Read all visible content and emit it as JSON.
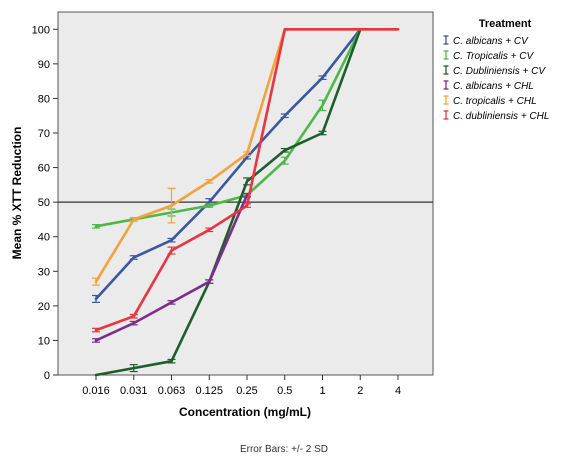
{
  "chart_data": {
    "type": "line",
    "title": "",
    "xlabel": "Concentration (mg/mL)",
    "ylabel": "Mean % XTT Reduction",
    "categories": [
      "0.016",
      "0.031",
      "0.063",
      "0.125",
      "0.25",
      "0.5",
      "1",
      "2",
      "4"
    ],
    "ylim": [
      0,
      105
    ],
    "yticks": [
      0,
      10,
      20,
      30,
      40,
      50,
      60,
      70,
      80,
      90,
      100
    ],
    "reference_line_y": 50,
    "grid": false,
    "plot_background": "#ebebeb",
    "legend": {
      "title": "Treatment",
      "position": "right"
    },
    "footnote": "Error Bars: +/- 2 SD",
    "series": [
      {
        "name": "C. albicans + CV",
        "color": "#3a56a5",
        "values": [
          22,
          34,
          39,
          50,
          63,
          75,
          86,
          100,
          null
        ],
        "err": [
          1,
          0.5,
          0.5,
          1,
          0.5,
          0.5,
          0.5,
          0,
          null
        ]
      },
      {
        "name": "C. Tropicalis + CV",
        "color": "#4db848",
        "values": [
          43,
          45,
          47,
          49,
          52,
          62,
          78,
          100,
          null
        ],
        "err": [
          0.5,
          0.5,
          1,
          0.5,
          0.5,
          1,
          1.5,
          0,
          null
        ]
      },
      {
        "name": "C. Dubliniensis + CV",
        "color": "#1e5e2a",
        "values": [
          0,
          2,
          4,
          27,
          56,
          65,
          70,
          100,
          null
        ],
        "err": [
          0,
          1,
          0.5,
          0.5,
          1,
          0.5,
          0.5,
          0,
          null
        ]
      },
      {
        "name": "C. albicans + CHL",
        "color": "#7b2d8e",
        "values": [
          10,
          15,
          21,
          27,
          52,
          null,
          null,
          null,
          null
        ],
        "err": [
          0.5,
          0.5,
          0.5,
          0.5,
          0.5,
          null,
          null,
          null,
          null
        ]
      },
      {
        "name": "C. tropicalis + CHL",
        "color": "#f7a13b",
        "values": [
          27,
          45,
          49,
          56,
          64,
          100,
          100,
          100,
          100
        ],
        "err": [
          1,
          0.5,
          5,
          0.5,
          0.5,
          0,
          0,
          0,
          0
        ]
      },
      {
        "name": "C. dubliniensis + CHL",
        "color": "#e8353f",
        "values": [
          13,
          17,
          36,
          42,
          49,
          100,
          100,
          100,
          100
        ],
        "err": [
          0.5,
          0.5,
          1,
          0.5,
          0.5,
          0,
          0,
          0,
          0
        ]
      }
    ]
  }
}
